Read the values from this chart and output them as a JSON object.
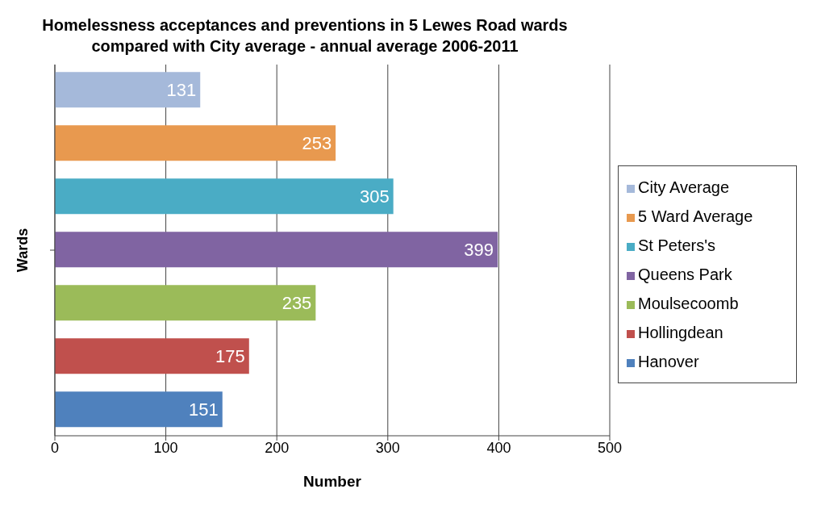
{
  "chart_data": {
    "type": "bar",
    "orientation": "horizontal",
    "title": "Homelessness acceptances and preventions in 5 Lewes Road wards compared with City average - annual average 2006-2011",
    "xlabel": "Number",
    "ylabel": "Wards",
    "categories": [
      null
    ],
    "series": [
      {
        "name": "City Average",
        "color": "#a5b9da",
        "values": [
          131
        ]
      },
      {
        "name": "5 Ward Average",
        "color": "#e8994f",
        "values": [
          253
        ]
      },
      {
        "name": "St Peters's",
        "color": "#4aacc5",
        "values": [
          305
        ]
      },
      {
        "name": "Queens Park",
        "color": "#8064a2",
        "values": [
          399
        ]
      },
      {
        "name": "Moulsecoomb",
        "color": "#9bbb59",
        "values": [
          235
        ]
      },
      {
        "name": "Hollingdean",
        "color": "#c0504d",
        "values": [
          175
        ]
      },
      {
        "name": "Hanover",
        "color": "#4f81bd",
        "values": [
          151
        ]
      }
    ],
    "xlim": [
      0,
      500
    ],
    "xticks": [
      0,
      100,
      200,
      300,
      400,
      500
    ],
    "grid": "x",
    "legend": "right",
    "data_labels": true
  }
}
